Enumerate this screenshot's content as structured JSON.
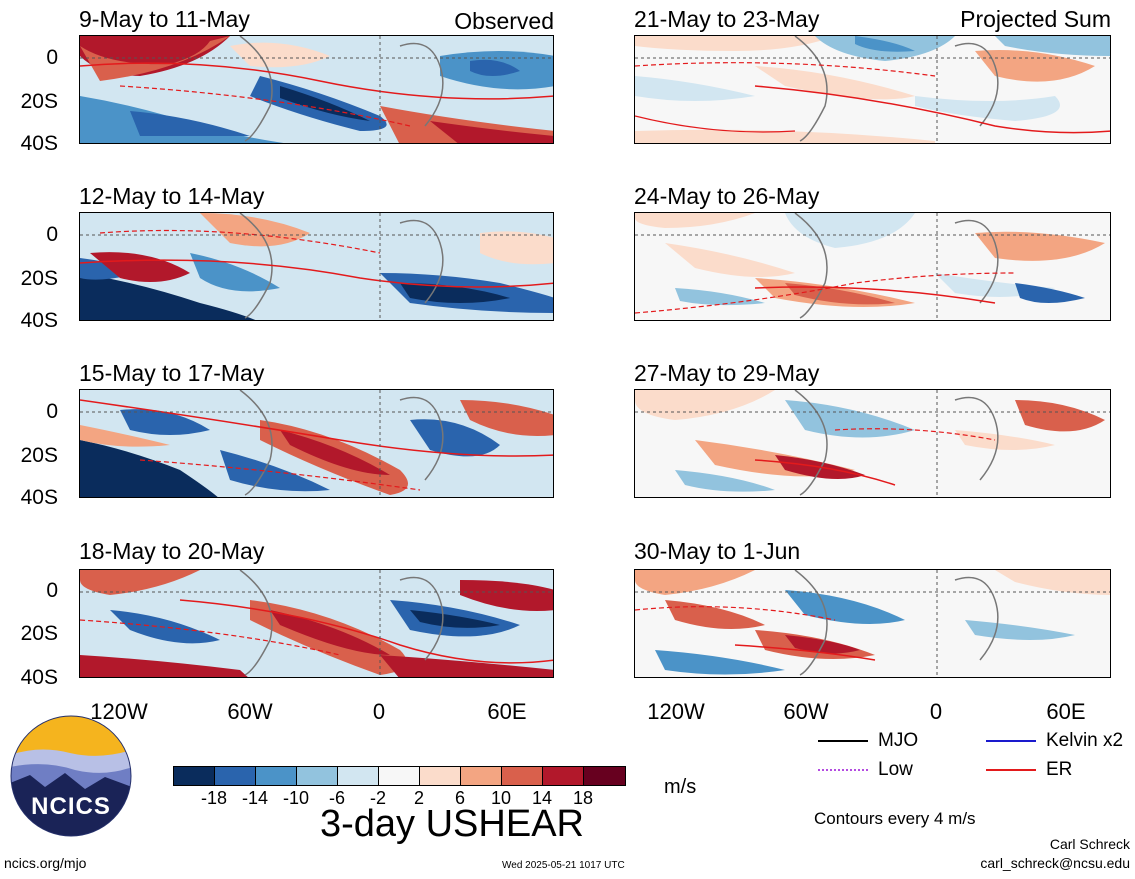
{
  "left_column": {
    "label": "Observed",
    "panels": [
      {
        "title": "9-May to 11-May"
      },
      {
        "title": "12-May to 14-May"
      },
      {
        "title": "15-May to 17-May"
      },
      {
        "title": "18-May to 20-May"
      }
    ]
  },
  "right_column": {
    "label": "Projected Sum",
    "panels": [
      {
        "title": "21-May to 23-May"
      },
      {
        "title": "24-May to 26-May"
      },
      {
        "title": "27-May to 29-May"
      },
      {
        "title": "30-May to 1-Jun"
      }
    ]
  },
  "axes": {
    "lat_labels": [
      "0",
      "20S",
      "40S"
    ],
    "lon_labels": [
      "120W",
      "60W",
      "0",
      "60E"
    ]
  },
  "colorbar": {
    "colors": [
      "#0a2c5c",
      "#2a64ad",
      "#4b93c8",
      "#92c3de",
      "#d2e6f1",
      "#f7f7f7",
      "#fbdccb",
      "#f3a582",
      "#d9604c",
      "#b2182b",
      "#67001f"
    ],
    "ticks": [
      "-18",
      "-14",
      "-10",
      "-6",
      "-2",
      "2",
      "6",
      "10",
      "14",
      "18"
    ],
    "units": "m/s"
  },
  "field_title": "3-day USHEAR",
  "legend": {
    "items": [
      {
        "label": "MJO",
        "color": "#000000",
        "style": "solid"
      },
      {
        "label": "Kelvin x2",
        "color": "#1a1acd",
        "style": "solid"
      },
      {
        "label": "Low",
        "color": "#b44be1",
        "style": "dotted"
      },
      {
        "label": "ER",
        "color": "#e31a1c",
        "style": "solid"
      }
    ],
    "contour_note": "Contours every 4 m/s"
  },
  "branding": {
    "logo_text": "NCICS",
    "site": "ncics.org/mjo",
    "timestamp": "Wed 2025-05-21 1017 UTC",
    "author": "Carl Schreck",
    "email": "carl_schreck@ncsu.edu"
  }
}
